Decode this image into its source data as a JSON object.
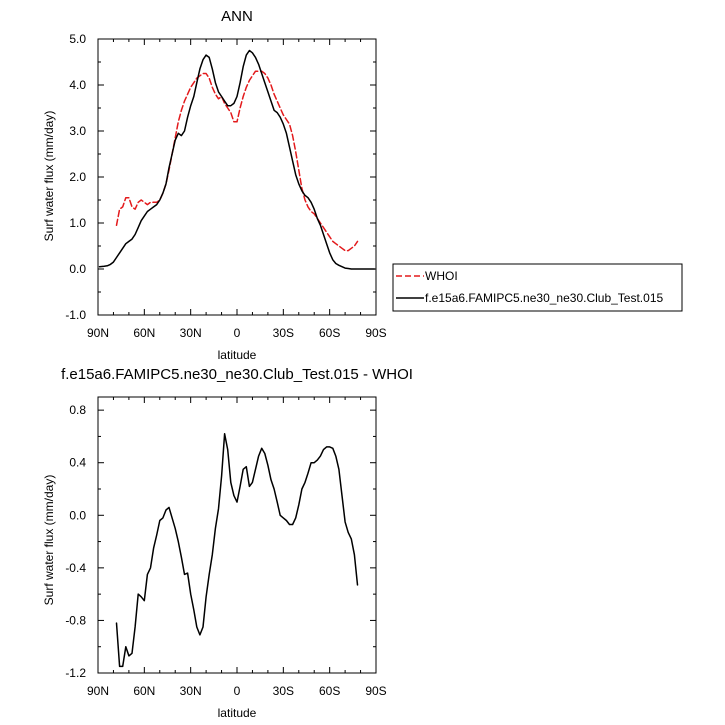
{
  "chart_data": [
    {
      "type": "line",
      "title": "ANN",
      "xlabel": "latitude",
      "ylabel": "Surf water flux (mm/day)",
      "xlim": [
        90,
        -90
      ],
      "ylim": [
        -1.0,
        5.0
      ],
      "grid": false,
      "legend_position": "right",
      "x_ticks": [
        90,
        60,
        30,
        0,
        -30,
        -60,
        -90
      ],
      "x_tick_labels": [
        "90N",
        "60N",
        "30N",
        "0",
        "30S",
        "60S",
        "90S"
      ],
      "y_ticks": [
        -1.0,
        0.0,
        1.0,
        2.0,
        3.0,
        4.0,
        5.0
      ],
      "y_tick_labels": [
        "-1.0",
        "0.0",
        "1.0",
        "2.0",
        "3.0",
        "4.0",
        "5.0"
      ],
      "series": [
        {
          "name": "WHOI",
          "color": "#e31a1c",
          "dash": "dashed",
          "x": [
            78,
            76,
            74,
            72,
            70,
            68,
            66,
            64,
            62,
            60,
            58,
            56,
            54,
            52,
            50,
            48,
            46,
            44,
            42,
            40,
            38,
            36,
            34,
            32,
            30,
            28,
            26,
            24,
            22,
            20,
            18,
            16,
            14,
            12,
            10,
            8,
            6,
            4,
            2,
            0,
            -2,
            -4,
            -6,
            -8,
            -10,
            -12,
            -14,
            -16,
            -18,
            -20,
            -22,
            -24,
            -26,
            -28,
            -30,
            -32,
            -34,
            -36,
            -38,
            -40,
            -42,
            -44,
            -46,
            -48,
            -50,
            -52,
            -54,
            -56,
            -58,
            -60,
            -62,
            -64,
            -66,
            -68,
            -70,
            -72,
            -74,
            -76,
            -78
          ],
          "y": [
            0.95,
            1.3,
            1.35,
            1.55,
            1.55,
            1.35,
            1.3,
            1.45,
            1.5,
            1.45,
            1.4,
            1.45,
            1.45,
            1.45,
            1.5,
            1.65,
            1.85,
            2.15,
            2.5,
            2.85,
            3.2,
            3.45,
            3.65,
            3.8,
            3.95,
            4.05,
            4.15,
            4.2,
            4.25,
            4.25,
            4.15,
            3.95,
            3.8,
            3.7,
            3.75,
            3.6,
            3.5,
            3.4,
            3.2,
            3.2,
            3.5,
            3.75,
            3.95,
            4.1,
            4.2,
            4.3,
            4.3,
            4.3,
            4.25,
            4.15,
            4.0,
            3.8,
            3.65,
            3.5,
            3.35,
            3.25,
            3.15,
            2.9,
            2.55,
            2.15,
            1.75,
            1.5,
            1.35,
            1.25,
            1.2,
            1.1,
            1.0,
            0.9,
            0.8,
            0.7,
            0.6,
            0.55,
            0.5,
            0.45,
            0.4,
            0.4,
            0.45,
            0.5,
            0.6
          ]
        },
        {
          "name": "f.e15a6.FAMIPC5.ne30_ne30.Club_Test.015",
          "color": "#000000",
          "dash": "solid",
          "x": [
            89,
            86,
            84,
            82,
            80,
            78,
            76,
            74,
            72,
            70,
            68,
            66,
            64,
            62,
            60,
            58,
            56,
            54,
            52,
            50,
            48,
            46,
            44,
            42,
            40,
            38,
            36,
            34,
            32,
            30,
            28,
            26,
            24,
            22,
            20,
            18,
            16,
            14,
            12,
            10,
            8,
            6,
            4,
            2,
            0,
            -2,
            -4,
            -6,
            -8,
            -10,
            -12,
            -14,
            -16,
            -18,
            -20,
            -22,
            -24,
            -26,
            -28,
            -30,
            -32,
            -34,
            -36,
            -38,
            -40,
            -42,
            -44,
            -46,
            -48,
            -50,
            -52,
            -54,
            -56,
            -58,
            -60,
            -62,
            -64,
            -66,
            -68,
            -70,
            -72,
            -74,
            -76,
            -78,
            -80,
            -82,
            -84,
            -86,
            -89
          ],
          "y": [
            0.05,
            0.06,
            0.07,
            0.1,
            0.15,
            0.25,
            0.35,
            0.45,
            0.55,
            0.6,
            0.65,
            0.75,
            0.9,
            1.05,
            1.15,
            1.25,
            1.3,
            1.35,
            1.4,
            1.5,
            1.65,
            1.85,
            2.2,
            2.5,
            2.8,
            2.95,
            2.9,
            3.0,
            3.3,
            3.55,
            3.75,
            4.05,
            4.35,
            4.55,
            4.65,
            4.6,
            4.35,
            4.05,
            3.85,
            3.75,
            3.65,
            3.55,
            3.55,
            3.6,
            3.75,
            4.05,
            4.4,
            4.65,
            4.75,
            4.7,
            4.6,
            4.45,
            4.25,
            4.05,
            3.85,
            3.65,
            3.45,
            3.4,
            3.3,
            3.15,
            2.95,
            2.65,
            2.35,
            2.05,
            1.85,
            1.7,
            1.6,
            1.55,
            1.45,
            1.3,
            1.1,
            0.95,
            0.75,
            0.55,
            0.35,
            0.2,
            0.12,
            0.08,
            0.05,
            0.02,
            0.01,
            0.0,
            0.0,
            0.0,
            0.0,
            0.0,
            0.0,
            0.0,
            0.0
          ]
        }
      ]
    },
    {
      "type": "line",
      "title": "f.e15a6.FAMIPC5.ne30_ne30.Club_Test.015 - WHOI",
      "xlabel": "latitude",
      "ylabel": "Surf water flux (mm/day)",
      "xlim": [
        90,
        -90
      ],
      "ylim": [
        -1.2,
        0.9
      ],
      "grid": false,
      "x_ticks": [
        90,
        60,
        30,
        0,
        -30,
        -60,
        -90
      ],
      "x_tick_labels": [
        "90N",
        "60N",
        "30N",
        "0",
        "30S",
        "60S",
        "90S"
      ],
      "y_ticks": [
        -1.2,
        -0.8,
        -0.4,
        0.0,
        0.4,
        0.8
      ],
      "y_tick_labels": [
        "-1.2",
        "-0.8",
        "-0.4",
        "0.0",
        "0.4",
        "0.8"
      ],
      "series": [
        {
          "color": "#000000",
          "dash": "solid",
          "x": [
            78,
            76,
            74,
            72,
            70,
            68,
            66,
            64,
            62,
            60,
            58,
            56,
            54,
            52,
            50,
            48,
            46,
            44,
            42,
            40,
            38,
            36,
            34,
            32,
            30,
            28,
            26,
            24,
            22,
            20,
            18,
            16,
            14,
            12,
            10,
            8,
            6,
            4,
            2,
            0,
            -2,
            -4,
            -6,
            -8,
            -10,
            -12,
            -14,
            -16,
            -18,
            -20,
            -22,
            -24,
            -26,
            -28,
            -30,
            -32,
            -34,
            -36,
            -38,
            -40,
            -42,
            -44,
            -46,
            -48,
            -50,
            -52,
            -54,
            -56,
            -58,
            -60,
            -62,
            -64,
            -66,
            -68,
            -70,
            -72,
            -74,
            -76,
            -78
          ],
          "y": [
            -0.82,
            -1.15,
            -1.15,
            -1.0,
            -1.07,
            -1.05,
            -0.85,
            -0.6,
            -0.62,
            -0.65,
            -0.45,
            -0.4,
            -0.25,
            -0.15,
            -0.04,
            -0.02,
            0.04,
            0.06,
            -0.02,
            -0.1,
            -0.2,
            -0.32,
            -0.45,
            -0.44,
            -0.6,
            -0.72,
            -0.85,
            -0.91,
            -0.85,
            -0.62,
            -0.45,
            -0.3,
            -0.1,
            0.05,
            0.3,
            0.62,
            0.5,
            0.25,
            0.15,
            0.1,
            0.22,
            0.35,
            0.37,
            0.22,
            0.25,
            0.35,
            0.45,
            0.51,
            0.47,
            0.38,
            0.27,
            0.2,
            0.1,
            0.0,
            -0.02,
            -0.04,
            -0.07,
            -0.07,
            -0.02,
            0.08,
            0.2,
            0.25,
            0.32,
            0.4,
            0.4,
            0.42,
            0.45,
            0.5,
            0.52,
            0.52,
            0.51,
            0.45,
            0.35,
            0.15,
            -0.05,
            -0.13,
            -0.18,
            -0.3,
            -0.53
          ]
        }
      ]
    }
  ]
}
